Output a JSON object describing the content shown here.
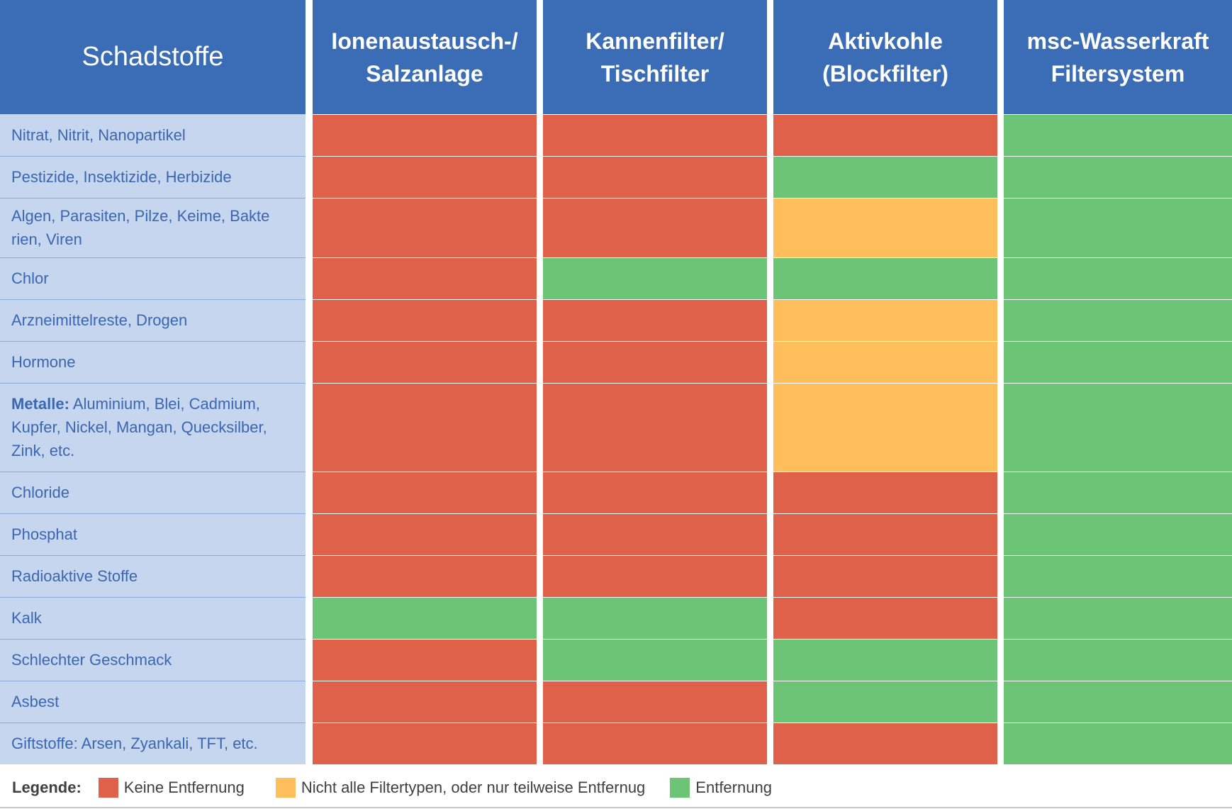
{
  "chart_data": {
    "type": "table",
    "corner_label": "Schadstoffe",
    "columns": [
      [
        "Ionenaustausch-/",
        "Salzanlage"
      ],
      [
        "Kannenfilter/",
        "Tischfilter"
      ],
      [
        "Aktivkohle",
        "(Blockfilter)"
      ],
      [
        "msc-Wasserkraft",
        "Filtersystem"
      ]
    ],
    "rows": [
      {
        "label_lines": [
          "Nitrat, Nitrit, Nanopartikel"
        ],
        "values": [
          "none",
          "none",
          "none",
          "full"
        ]
      },
      {
        "label_lines": [
          "Pestizide, Insektizide, Herbizide"
        ],
        "values": [
          "none",
          "none",
          "full",
          "full"
        ]
      },
      {
        "label_lines": [
          "Algen, Parasiten, Pilze, Keime, Bakte",
          "rien, Viren"
        ],
        "values": [
          "none",
          "none",
          "partial",
          "full"
        ]
      },
      {
        "label_lines": [
          "Chlor"
        ],
        "values": [
          "none",
          "full",
          "full",
          "full"
        ]
      },
      {
        "label_lines": [
          "Arzneimittelreste, Drogen"
        ],
        "values": [
          "none",
          "none",
          "partial",
          "full"
        ]
      },
      {
        "label_lines": [
          "Hormone"
        ],
        "values": [
          "none",
          "none",
          "partial",
          "full"
        ]
      },
      {
        "label_bold": "Metalle:",
        "label_lines": [
          " Aluminium, Blei, Cadmium,",
          "Kupfer, Nickel, Mangan, Quecksilber,",
          "Zink, etc."
        ],
        "values": [
          "none",
          "none",
          "partial",
          "full"
        ]
      },
      {
        "label_lines": [
          "Chloride"
        ],
        "values": [
          "none",
          "none",
          "none",
          "full"
        ]
      },
      {
        "label_lines": [
          "Phosphat"
        ],
        "values": [
          "none",
          "none",
          "none",
          "full"
        ]
      },
      {
        "label_lines": [
          "Radioaktive Stoffe"
        ],
        "values": [
          "none",
          "none",
          "none",
          "full"
        ]
      },
      {
        "label_lines": [
          "Kalk"
        ],
        "values": [
          "full",
          "full",
          "none",
          "full"
        ]
      },
      {
        "label_lines": [
          "Schlechter Geschmack"
        ],
        "values": [
          "none",
          "full",
          "full",
          "full"
        ]
      },
      {
        "label_lines": [
          "Asbest"
        ],
        "values": [
          "none",
          "none",
          "full",
          "full"
        ]
      },
      {
        "label_lines": [
          "Giftstoffe: Arsen, Zyankali, TFT, etc."
        ],
        "values": [
          "none",
          "none",
          "none",
          "full"
        ]
      }
    ],
    "colors": {
      "none": "#df614a",
      "partial": "#fdbe5b",
      "full": "#6cc576"
    }
  },
  "legend": {
    "title": "Legende:",
    "items": [
      {
        "key": "none",
        "label": "Keine Entfernung"
      },
      {
        "key": "partial",
        "label": "Nicht alle Filtertypen, oder nur teilweise Entfernug"
      },
      {
        "key": "full",
        "label": "Entfernung"
      }
    ]
  }
}
